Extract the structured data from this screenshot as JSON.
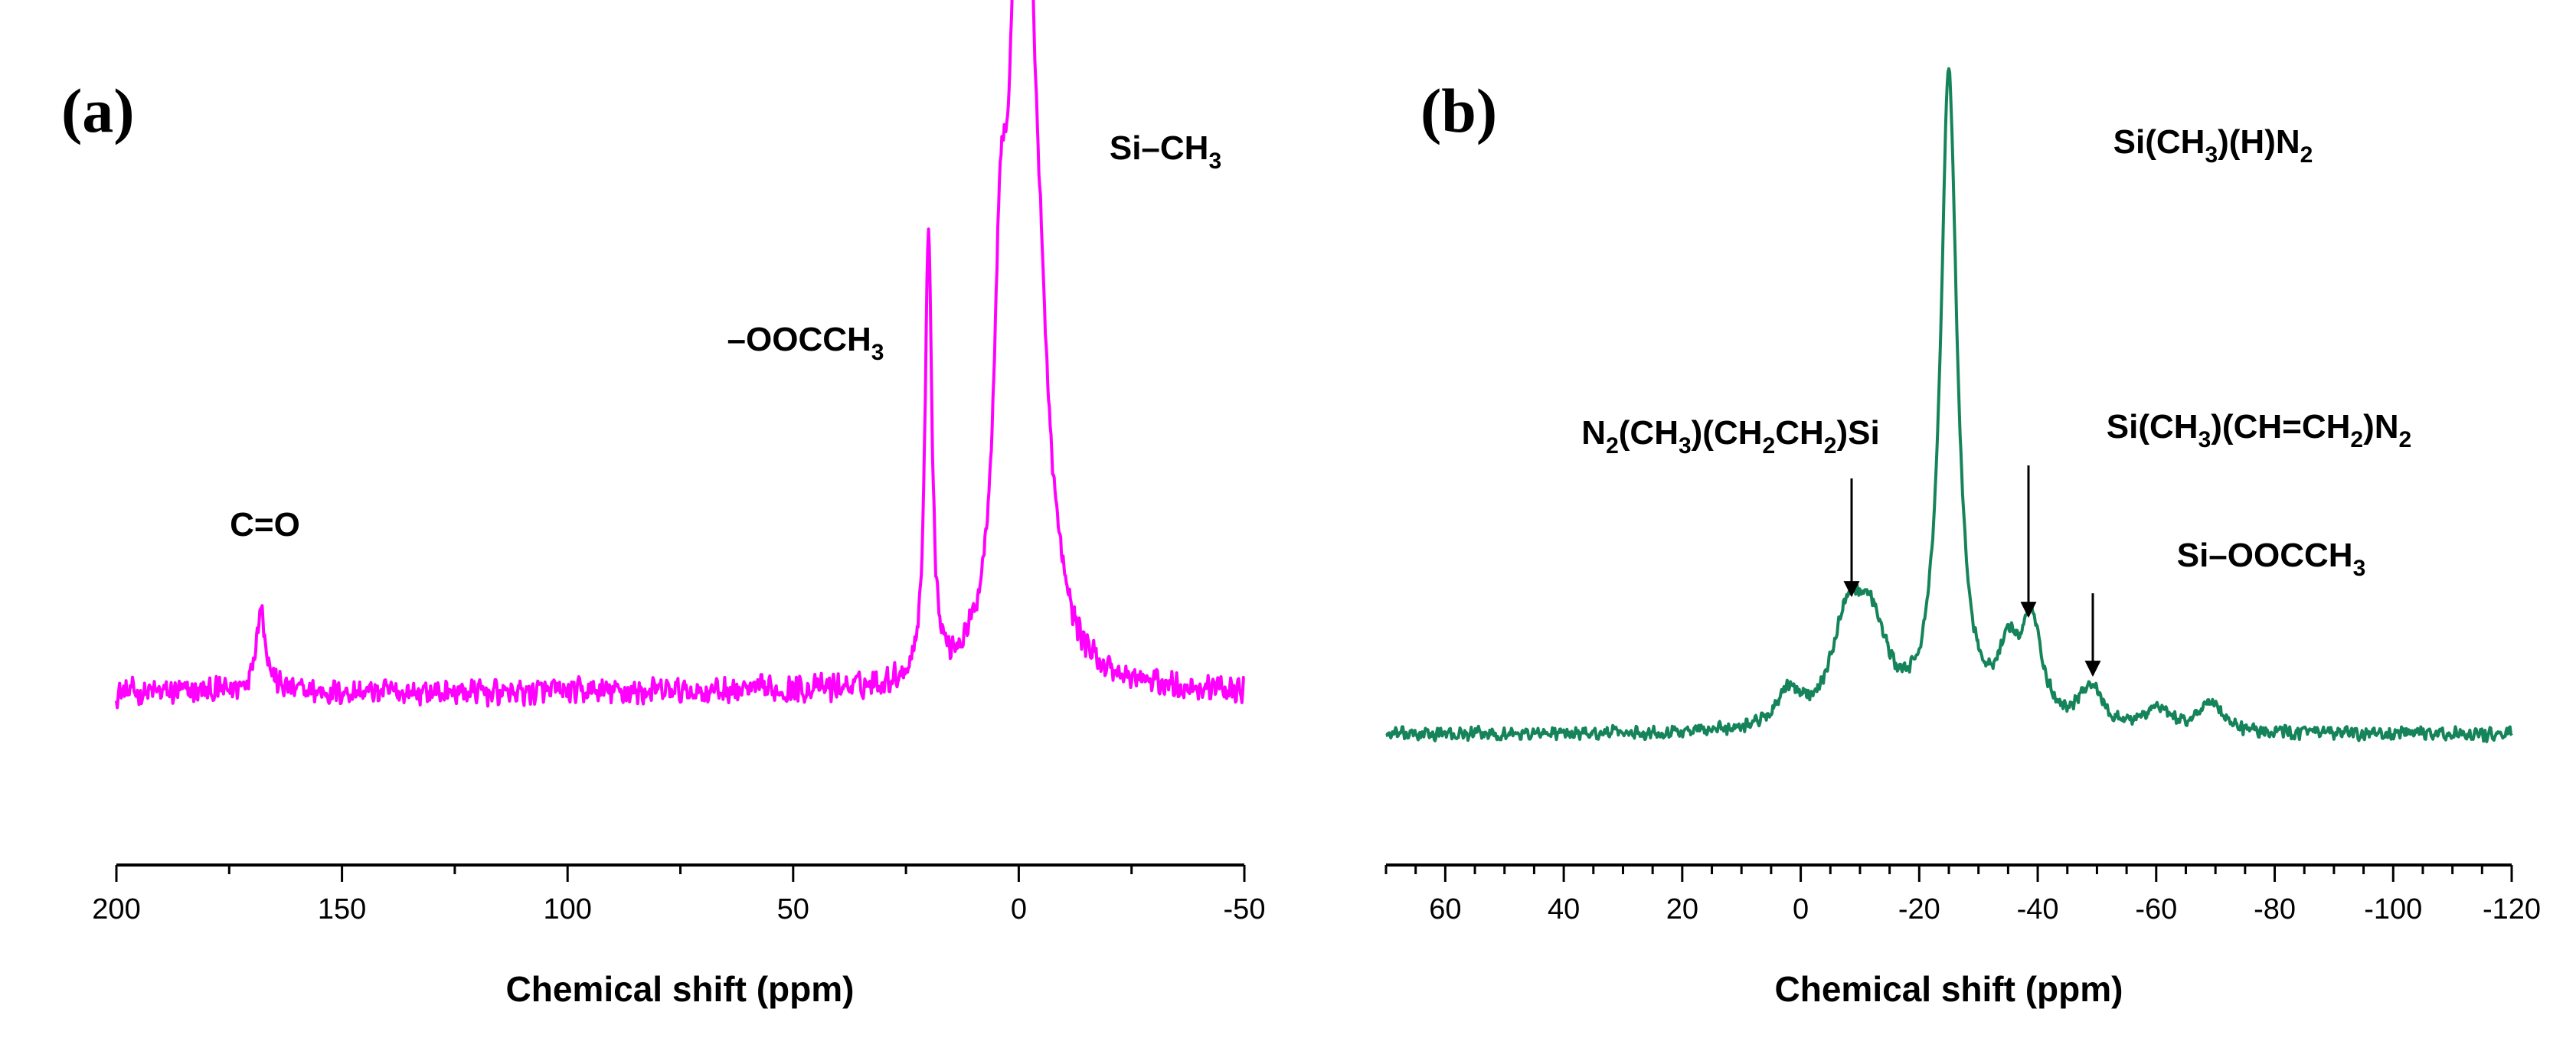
{
  "chart_data": [
    {
      "type": "line",
      "panel_label": "(a)",
      "xlabel": "Chemical shift (ppm)",
      "ylabel": "",
      "xlim": [
        200,
        -50
      ],
      "x_ticks": [
        200,
        150,
        100,
        50,
        0,
        -50
      ],
      "x_minor_step": 25,
      "color": "#ff00ff",
      "grid": false,
      "peaks": [
        {
          "x": 168,
          "h": 0.24,
          "w": 1.4
        },
        {
          "x": 20,
          "h": 1.28,
          "w": 0.9
        },
        {
          "x": 4,
          "h": 0.9,
          "w": 1.8
        },
        {
          "x": 0.5,
          "h": 1.2,
          "w": 2.2
        },
        {
          "x": -1.5,
          "h": 1.55,
          "w": 1.8
        },
        {
          "x": -4,
          "h": 0.85,
          "w": 3.5
        }
      ],
      "noise_amplitude": 0.045,
      "annotations": [
        {
          "text": "C=O",
          "x": 168
        },
        {
          "text": "–OOCCH3",
          "x": 58
        },
        {
          "text": "Si–CH3",
          "x": -26
        }
      ]
    },
    {
      "type": "line",
      "panel_label": "(b)",
      "xlabel": "Chemical shift (ppm)",
      "ylabel": "",
      "xlim": [
        70,
        -120
      ],
      "x_ticks": [
        60,
        40,
        20,
        0,
        -20,
        -40,
        -60,
        -80,
        -100,
        -120
      ],
      "x_minor_step": 5,
      "color": "#16845a",
      "grid": false,
      "peaks": [
        {
          "x": -25,
          "h": 1.84,
          "w": 1.7
        },
        {
          "x": -8,
          "h": 0.29,
          "w": 3.2
        },
        {
          "x": -12,
          "h": 0.24,
          "w": 3.2
        },
        {
          "x": -39,
          "h": 0.28,
          "w": 2.0
        },
        {
          "x": -35,
          "h": 0.18,
          "w": 2.2
        },
        {
          "x": -49,
          "h": 0.12,
          "w": 2.2
        },
        {
          "x": 2,
          "h": 0.09,
          "w": 2.5
        },
        {
          "x": -69,
          "h": 0.08,
          "w": 2.5
        },
        {
          "x": -60,
          "h": 0.06,
          "w": 2.5
        }
      ],
      "noise_amplitude": 0.022,
      "annotations": [
        {
          "text": "Si(CH3)(H)N2",
          "x": -48
        },
        {
          "text": "N2(CH3)(CH2CH2)Si",
          "x": 13
        },
        {
          "text": "Si(CH3)(CH=CH2)N2",
          "x": -58
        },
        {
          "text": "Si–OOCCH3",
          "x": -60
        }
      ],
      "arrows": [
        {
          "label": "N2(CH3)(CH2CH2)Si",
          "x": -8
        },
        {
          "label": "Si(CH3)(CH=CH2)N2",
          "x": -38
        },
        {
          "label": "Si–OOCCH3",
          "x": -49
        }
      ]
    }
  ]
}
